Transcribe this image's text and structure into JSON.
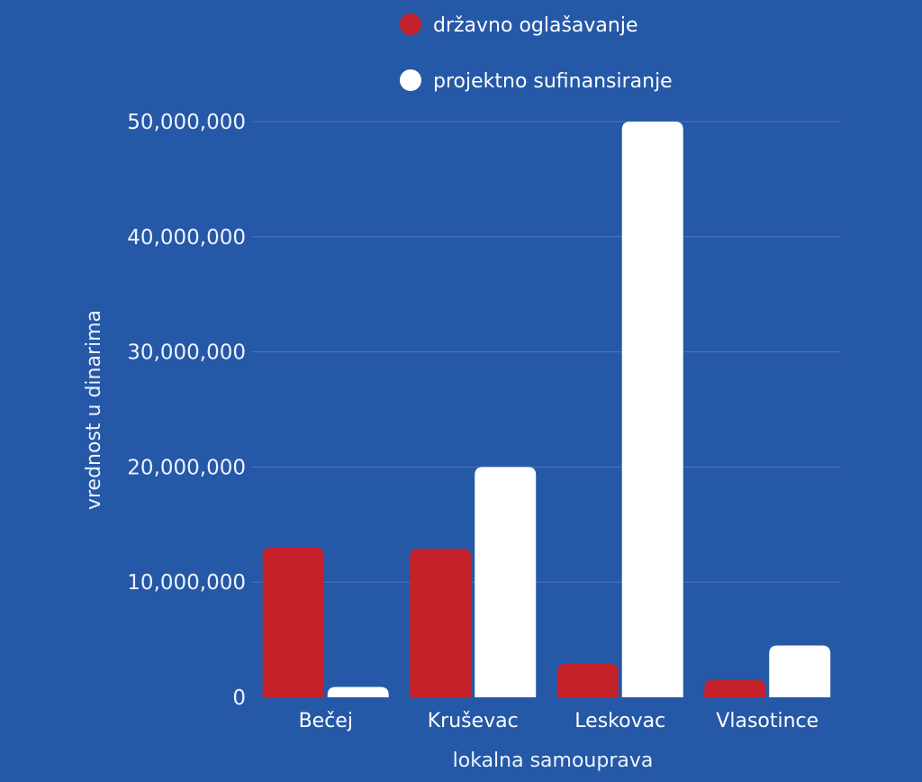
{
  "chart_data": {
    "type": "bar",
    "categories": [
      "Bečej",
      "Kruševac",
      "Leskovac",
      "Vlasotince"
    ],
    "series": [
      {
        "name": "državno oglašavanje",
        "color": "#c4212b",
        "values": [
          13000000,
          12900000,
          2900000,
          1500000
        ]
      },
      {
        "name": "projektno sufinansiranje",
        "color": "#ffffff",
        "values": [
          900000,
          20000000,
          50000000,
          4500000
        ]
      }
    ],
    "xlabel": "lokalna samouprava",
    "ylabel": "vrednost u dinarima",
    "ylim": [
      0,
      50000000
    ],
    "yticks": [
      0,
      10000000,
      20000000,
      30000000,
      40000000,
      50000000
    ],
    "ytick_labels": [
      "0",
      "10,000,000",
      "20,000,000",
      "30,000,000",
      "40,000,000",
      "50,000,000"
    ],
    "grid": true,
    "legend_position": "top-center",
    "background_color": "#2558a6"
  }
}
